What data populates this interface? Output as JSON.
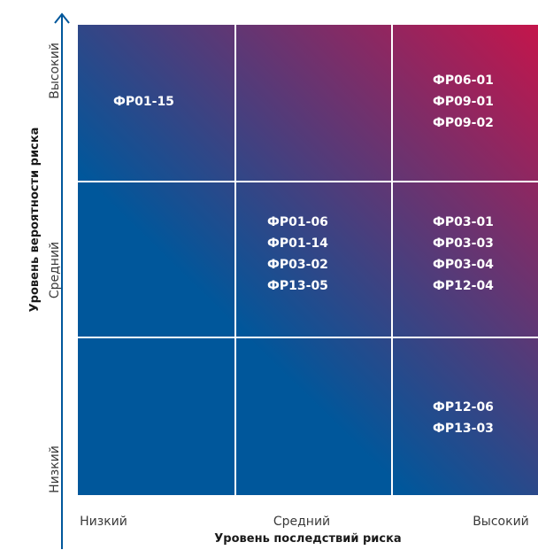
{
  "chart_data": {
    "type": "heatmap",
    "xlabel": "Уровень последствий риска",
    "ylabel": "Уровень вероятности риска",
    "x_categories": [
      "Низкий",
      "Средний",
      "Высокий"
    ],
    "y_categories": [
      "Низкий",
      "Средний",
      "Высокий"
    ],
    "colors": {
      "low": "#00579b",
      "high": "#c4154b",
      "axis": "#00579b",
      "grid": "#ffffff"
    },
    "cells": [
      {
        "x": "Низкий",
        "y": "Высокий",
        "items": [
          "ФР01-15"
        ]
      },
      {
        "x": "Средний",
        "y": "Высокий",
        "items": []
      },
      {
        "x": "Высокий",
        "y": "Высокий",
        "items": [
          "ФР06-01",
          "ФР09-01",
          "ФР09-02"
        ]
      },
      {
        "x": "Низкий",
        "y": "Средний",
        "items": []
      },
      {
        "x": "Средний",
        "y": "Средний",
        "items": [
          "ФР01-06",
          "ФР01-14",
          "ФР03-02",
          "ФР13-05"
        ]
      },
      {
        "x": "Высокий",
        "y": "Средний",
        "items": [
          "ФР03-01",
          "ФР03-03",
          "ФР03-04",
          "ФР12-04"
        ]
      },
      {
        "x": "Низкий",
        "y": "Низкий",
        "items": []
      },
      {
        "x": "Средний",
        "y": "Низкий",
        "items": []
      },
      {
        "x": "Высокий",
        "y": "Низкий",
        "items": [
          "ФР12-06",
          "ФР13-03"
        ]
      }
    ]
  }
}
